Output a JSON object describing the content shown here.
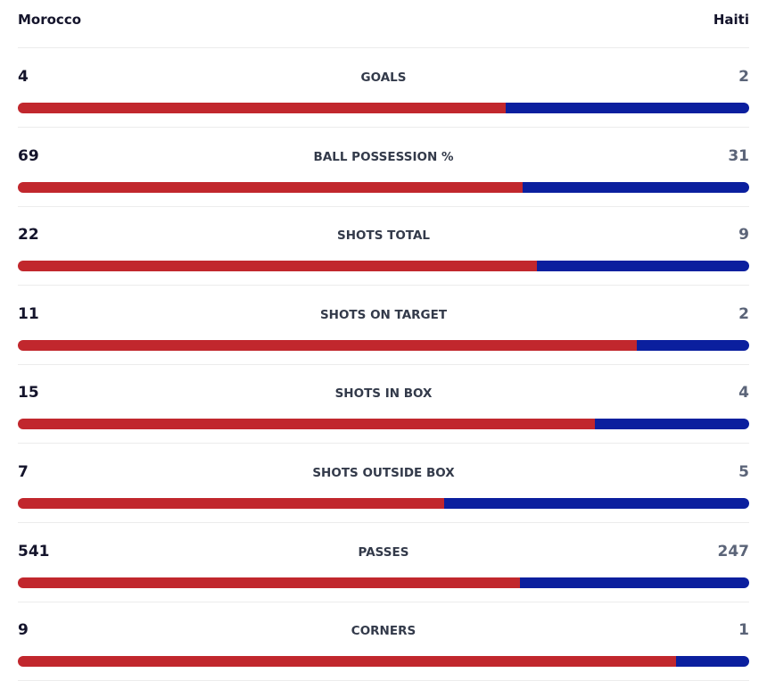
{
  "teams": {
    "home": "Morocco",
    "away": "Haiti"
  },
  "colors": {
    "home": "#c1272d",
    "away": "#0b1f9e"
  },
  "stats": [
    {
      "label": "GOALS",
      "home": 4,
      "away": 2
    },
    {
      "label": "BALL POSSESSION %",
      "home": 69,
      "away": 31
    },
    {
      "label": "SHOTS TOTAL",
      "home": 22,
      "away": 9
    },
    {
      "label": "SHOTS ON TARGET",
      "home": 11,
      "away": 2
    },
    {
      "label": "SHOTS IN BOX",
      "home": 15,
      "away": 4
    },
    {
      "label": "SHOTS OUTSIDE BOX",
      "home": 7,
      "away": 5
    },
    {
      "label": "PASSES",
      "home": 541,
      "away": 247
    },
    {
      "label": "CORNERS",
      "home": 9,
      "away": 1
    }
  ]
}
